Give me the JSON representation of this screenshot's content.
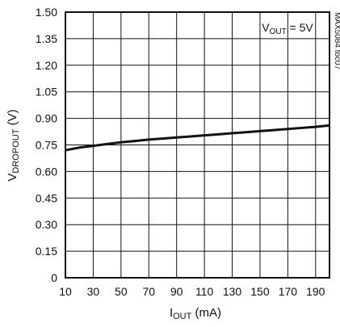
{
  "chart_data": {
    "type": "line",
    "xlabel_parts": {
      "main": "I",
      "sub": "OUT",
      "unit": " (mA)"
    },
    "ylabel_parts": {
      "main": "V",
      "sub": "DROPOUT",
      "unit": " (V)"
    },
    "annotation_parts": {
      "main": "V",
      "sub": "OUT",
      "rest": " = 5V"
    },
    "side_label": "MAX5084 toc07",
    "xlim": [
      10,
      200
    ],
    "ylim": [
      0,
      1.5
    ],
    "x_ticks": [
      10,
      30,
      50,
      70,
      90,
      110,
      130,
      150,
      170,
      190
    ],
    "y_ticks": [
      "0",
      "0.15",
      "0.30",
      "0.45",
      "0.60",
      "0.75",
      "0.90",
      "1.05",
      "1.20",
      "1.35",
      "1.50"
    ],
    "grid": true,
    "colors": {
      "line": "#111111",
      "grid": "#111111",
      "frame": "#111111"
    },
    "series": [
      {
        "x": [
          10,
          20,
          30,
          40,
          50,
          60,
          70,
          80,
          90,
          100,
          110,
          120,
          130,
          140,
          150,
          160,
          170,
          180,
          190,
          200
        ],
        "y": [
          0.72,
          0.735,
          0.745,
          0.755,
          0.765,
          0.772,
          0.78,
          0.786,
          0.792,
          0.798,
          0.804,
          0.81,
          0.816,
          0.822,
          0.828,
          0.834,
          0.84,
          0.846,
          0.852,
          0.86
        ]
      }
    ]
  }
}
